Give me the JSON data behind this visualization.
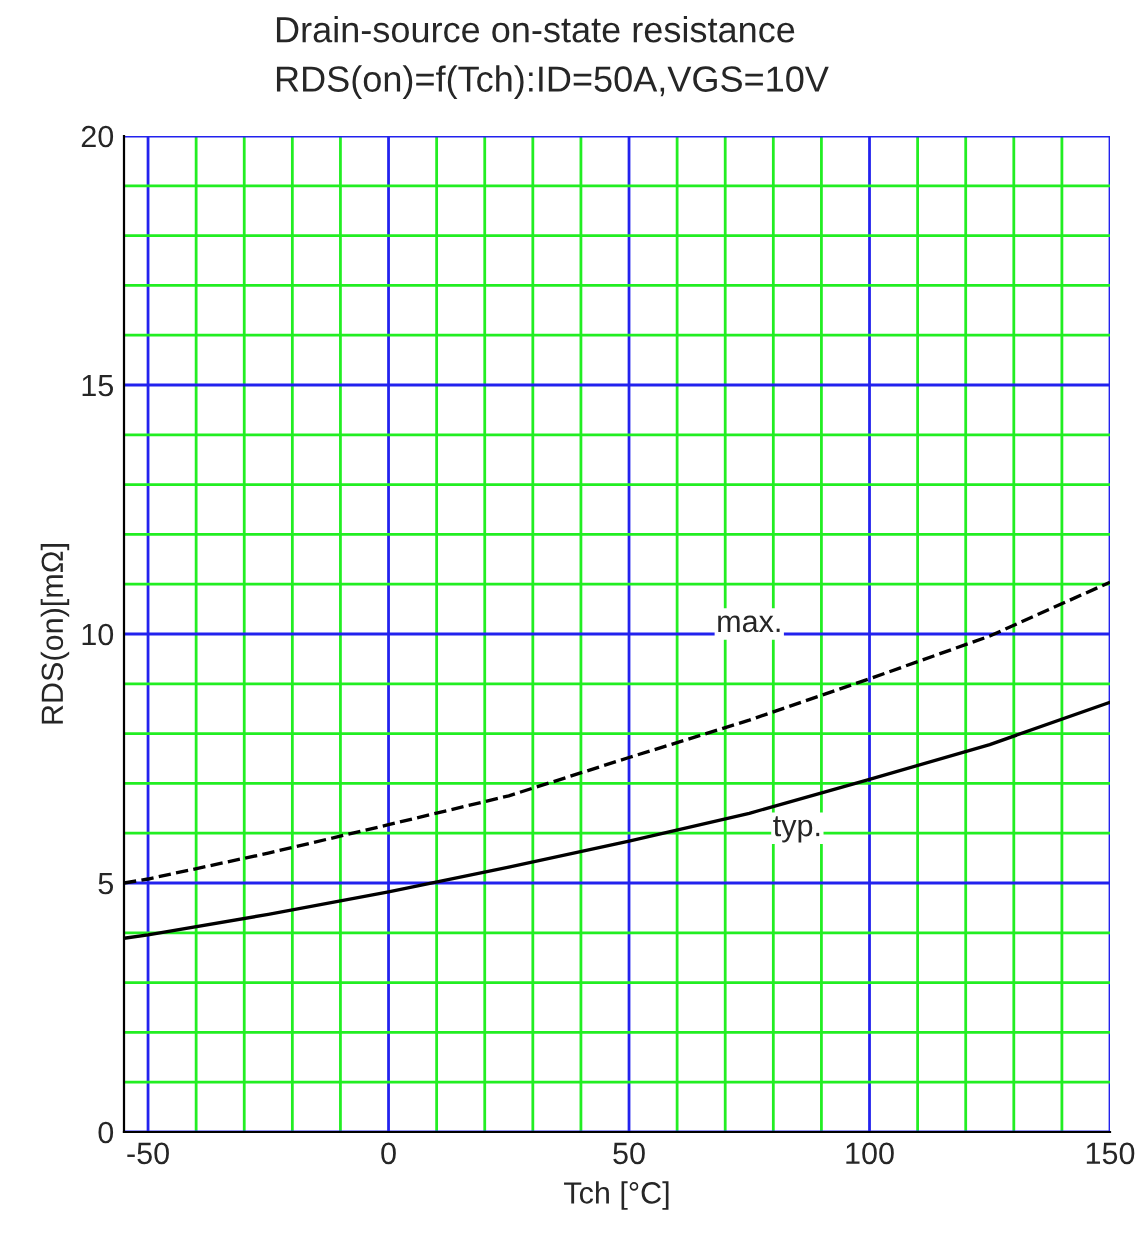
{
  "chart_data": {
    "type": "line",
    "title": "Drain-source on-state resistance\nRDS(on)=f(Tch):ID=50A,VGS=10V",
    "xlabel": "Tch [°C]",
    "ylabel": "RDS(on)[mΩ]",
    "x": [
      -55,
      -50,
      -25,
      0,
      25,
      50,
      75,
      100,
      125,
      150
    ],
    "series": [
      {
        "color": "#000000",
        "line_style": "solid",
        "values": [
          3.89,
          3.96,
          4.37,
          4.82,
          5.32,
          5.84,
          6.4,
          7.08,
          7.78,
          8.63
        ]
      },
      {
        "color": "#000000",
        "line_style": "dashed",
        "values": [
          5.0,
          5.08,
          5.6,
          6.17,
          6.75,
          7.52,
          8.27,
          9.1,
          9.96,
          11.04
        ]
      }
    ],
    "annotations": [
      {
        "text": "max.",
        "x": 75,
        "y": 10.2
      },
      {
        "text": "typ.",
        "x": 85,
        "y": 6.1
      }
    ],
    "xlim": [
      -55,
      150
    ],
    "ylim": [
      0,
      20
    ],
    "xticks": [
      -50,
      {
        "value": -40,
        "label": null
      },
      {
        "value": -30,
        "label": null
      },
      {
        "value": -20,
        "label": null
      },
      {
        "value": -10,
        "label": null
      },
      0,
      {
        "value": 10,
        "label": null
      },
      {
        "value": 20,
        "label": null
      },
      {
        "value": 30,
        "label": null
      },
      {
        "value": 40,
        "label": null
      },
      50,
      {
        "value": 60,
        "label": null
      },
      {
        "value": 70,
        "label": null
      },
      {
        "value": 80,
        "label": null
      },
      {
        "value": 90,
        "label": null
      },
      100,
      {
        "value": 110,
        "label": null
      },
      {
        "value": 120,
        "label": null
      },
      {
        "value": 130,
        "label": null
      },
      {
        "value": 140,
        "label": null
      },
      150
    ],
    "yticks": [
      0,
      {
        "value": 1,
        "label": null
      },
      {
        "value": 2,
        "label": null
      },
      {
        "value": 3,
        "label": null
      },
      {
        "value": 4,
        "label": null
      },
      5,
      {
        "value": 6,
        "label": null
      },
      {
        "value": 7,
        "label": null
      },
      {
        "value": 8,
        "label": null
      },
      {
        "value": 9,
        "label": null
      },
      10,
      {
        "value": 11,
        "label": null
      },
      {
        "value": 12,
        "label": null
      },
      {
        "value": 13,
        "label": null
      },
      {
        "value": 14,
        "label": null
      },
      15,
      {
        "value": 16,
        "label": null
      },
      {
        "value": 17,
        "label": null
      },
      {
        "value": 18,
        "label": null
      },
      {
        "value": 19,
        "label": null
      },
      20
    ],
    "grid": true,
    "legend": false
  }
}
